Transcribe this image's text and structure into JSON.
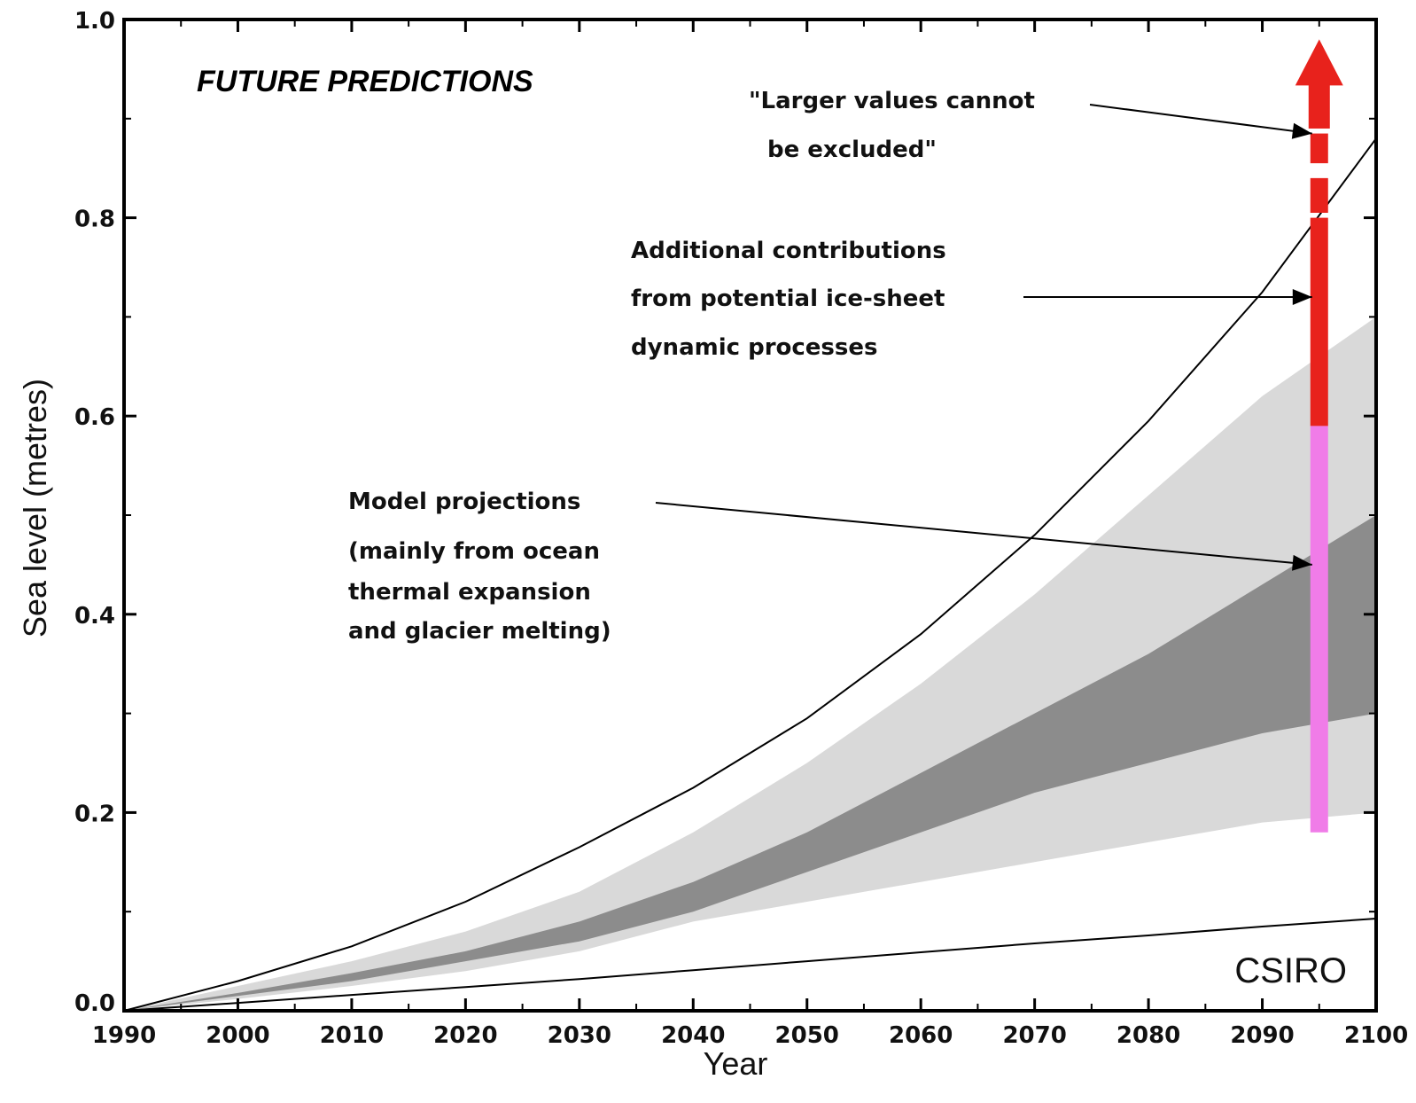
{
  "chart_data": {
    "type": "area",
    "xlabel": "Year",
    "ylabel": "Sea level (metres)",
    "xlim": [
      1990,
      2100
    ],
    "ylim": [
      0,
      1.0
    ],
    "x_ticks": [
      1990,
      2000,
      2010,
      2020,
      2030,
      2040,
      2050,
      2060,
      2070,
      2080,
      2090,
      2100
    ],
    "x_tick_labels": [
      "1990",
      "2000",
      "2010",
      "2020",
      "2030",
      "2040",
      "2050",
      "2060",
      "2070",
      "2080",
      "2090",
      "2100"
    ],
    "y_ticks": [
      0,
      0.2,
      0.4,
      0.6,
      0.8,
      1.0
    ],
    "y_tick_labels": [
      "0.0",
      "0.2",
      "0.4",
      "0.6",
      "0.8",
      "1.0"
    ],
    "grid": false,
    "colors": {
      "outer_band": "#d9d9d9",
      "inner_band": "#8c8c8c",
      "model_bar": "#f07ce8",
      "ice_bar": "#e8221c",
      "arrow": "#e8221c",
      "line": "#000000"
    },
    "series": [
      {
        "style": "light-gray band",
        "x": [
          1990,
          2000,
          2010,
          2020,
          2030,
          2040,
          2050,
          2060,
          2070,
          2080,
          2090,
          2100
        ],
        "upper": [
          0.0,
          0.025,
          0.05,
          0.08,
          0.12,
          0.18,
          0.25,
          0.33,
          0.42,
          0.52,
          0.62,
          0.7
        ],
        "lower": [
          0.0,
          0.012,
          0.025,
          0.04,
          0.06,
          0.09,
          0.11,
          0.13,
          0.15,
          0.17,
          0.19,
          0.2
        ]
      },
      {
        "style": "dark-gray band",
        "x": [
          1990,
          2000,
          2010,
          2020,
          2030,
          2040,
          2050,
          2060,
          2070,
          2080,
          2090,
          2100
        ],
        "upper": [
          0.0,
          0.018,
          0.038,
          0.06,
          0.09,
          0.13,
          0.18,
          0.24,
          0.3,
          0.36,
          0.43,
          0.5
        ],
        "lower": [
          0.0,
          0.015,
          0.03,
          0.05,
          0.07,
          0.1,
          0.14,
          0.18,
          0.22,
          0.25,
          0.28,
          0.3
        ]
      },
      {
        "style": "upper black line",
        "x": [
          1990,
          2000,
          2010,
          2020,
          2030,
          2040,
          2050,
          2060,
          2070,
          2080,
          2090,
          2100
        ],
        "y": [
          0.0,
          0.03,
          0.065,
          0.11,
          0.165,
          0.225,
          0.295,
          0.38,
          0.48,
          0.595,
          0.725,
          0.88
        ]
      },
      {
        "style": "lower black line",
        "x": [
          1990,
          2000,
          2010,
          2020,
          2030,
          2040,
          2050,
          2060,
          2070,
          2080,
          2090,
          2100
        ],
        "y": [
          0.0,
          0.008,
          0.016,
          0.024,
          0.032,
          0.041,
          0.05,
          0.059,
          0.068,
          0.076,
          0.085,
          0.093
        ]
      }
    ],
    "bars_2095": {
      "x": 2095,
      "model_projections": [
        0.18,
        0.59
      ],
      "ice_sheet_contributions": [
        0.59,
        0.8
      ],
      "larger_values_dashes": [
        [
          0.805,
          0.84
        ],
        [
          0.855,
          0.885
        ]
      ],
      "arrow": [
        0.89,
        0.98
      ]
    },
    "annotations": {
      "title": "FUTURE PREDICTIONS",
      "larger_line1": "\"Larger values cannot",
      "larger_line2": "be excluded\"",
      "additional_line1": "Additional contributions",
      "additional_line2": "from potential ice-sheet",
      "additional_line3": "dynamic processes",
      "model_line1": "Model projections",
      "model_line2": "(mainly from ocean",
      "model_line3": "thermal expansion",
      "model_line4": "and glacier melting)",
      "credit": "CSIRO"
    }
  }
}
